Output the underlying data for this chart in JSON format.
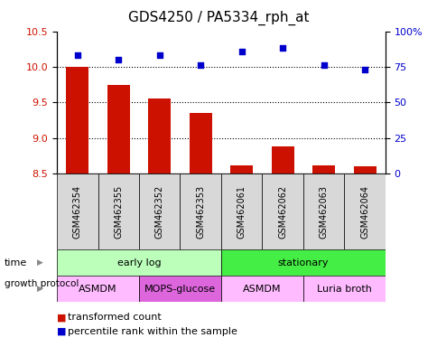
{
  "title": "GDS4250 / PA5334_rph_at",
  "samples": [
    "GSM462354",
    "GSM462355",
    "GSM462352",
    "GSM462353",
    "GSM462061",
    "GSM462062",
    "GSM462063",
    "GSM462064"
  ],
  "bar_values": [
    10.0,
    9.75,
    9.55,
    9.35,
    8.62,
    8.88,
    8.62,
    8.6
  ],
  "scatter_values": [
    83,
    80,
    83,
    76,
    86,
    88,
    76,
    73
  ],
  "ylim_left": [
    8.5,
    10.5
  ],
  "ylim_right": [
    0,
    100
  ],
  "yticks_left": [
    8.5,
    9.0,
    9.5,
    10.0,
    10.5
  ],
  "yticks_right": [
    0,
    25,
    50,
    75,
    100
  ],
  "ytick_labels_right": [
    "0",
    "25",
    "50",
    "75",
    "100%"
  ],
  "bar_color": "#cc1100",
  "scatter_color": "#0000cc",
  "bar_bottom": 8.5,
  "grid_lines": [
    10.0,
    9.5,
    9.0
  ],
  "time_labels": [
    {
      "text": "early log",
      "start": 0,
      "end": 4,
      "color": "#bbffbb"
    },
    {
      "text": "stationary",
      "start": 4,
      "end": 8,
      "color": "#44ee44"
    }
  ],
  "protocol_labels": [
    {
      "text": "ASMDM",
      "start": 0,
      "end": 2,
      "color": "#ffbbff"
    },
    {
      "text": "MOPS-glucose",
      "start": 2,
      "end": 4,
      "color": "#dd66dd"
    },
    {
      "text": "ASMDM",
      "start": 4,
      "end": 6,
      "color": "#ffbbff"
    },
    {
      "text": "Luria broth",
      "start": 6,
      "end": 8,
      "color": "#ffbbff"
    }
  ],
  "xlabel_time": "time",
  "xlabel_protocol": "growth protocol",
  "legend_bar_label": "transformed count",
  "legend_scatter_label": "percentile rank within the sample",
  "title_fontsize": 11,
  "tick_fontsize": 8,
  "sample_fontsize": 7,
  "row_fontsize": 8,
  "legend_fontsize": 8,
  "bg_color": "#ffffff",
  "tick_label_color_left": "#cc1100",
  "tick_label_color_right": "#0000cc",
  "sample_box_color": "#d8d8d8"
}
